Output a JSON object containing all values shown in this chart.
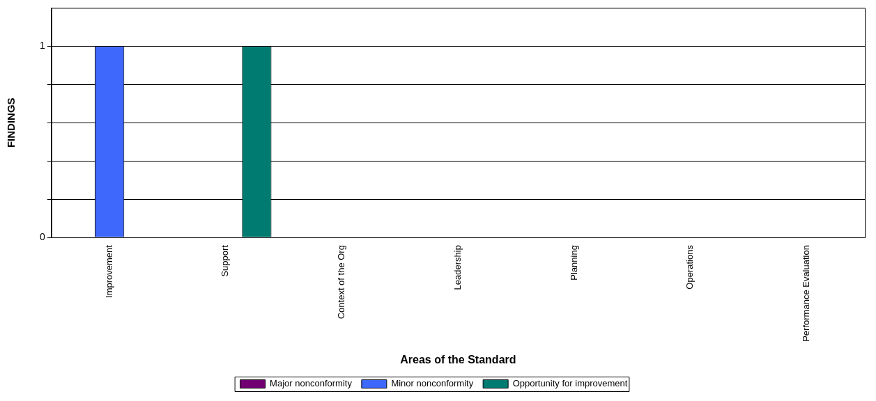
{
  "chart_data": {
    "type": "bar",
    "xlabel": "Areas of the Standard",
    "ylabel": "FINDINGS",
    "categories": [
      "Improvement",
      "Support",
      "Context of the Org",
      "Leadership",
      "Planning",
      "Operations",
      "Performance Evaluation"
    ],
    "series": [
      {
        "name": "Major nonconformity",
        "color": "#720072",
        "values": [
          0,
          0,
          0,
          0,
          0,
          0,
          0
        ]
      },
      {
        "name": "Minor nonconformity",
        "color": "#3e67fb",
        "values": [
          1,
          0,
          0,
          0,
          0,
          0,
          0
        ]
      },
      {
        "name": "Opportunity for improvement",
        "color": "#007b72",
        "values": [
          0,
          1,
          0,
          0,
          0,
          0,
          0
        ]
      }
    ],
    "ylim": [
      0,
      1.2
    ],
    "yticks": [
      0,
      {
        "value": 0.2,
        "label": null
      },
      {
        "value": 0.4,
        "label": null
      },
      {
        "value": 0.6,
        "label": null
      },
      {
        "value": 0.8,
        "label": null
      },
      1
    ],
    "grid": "y",
    "legend": "bottom"
  }
}
